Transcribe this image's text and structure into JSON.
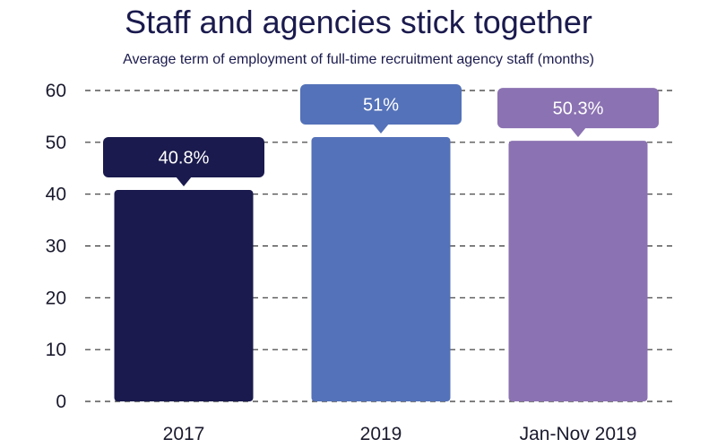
{
  "chart_data": {
    "type": "bar",
    "title": "Staff and agencies stick together",
    "subtitle": "Average term of employment of full-time recruitment agency staff (months)",
    "xlabel": "",
    "ylabel": "",
    "categories": [
      "2017",
      "2019",
      "Jan-Nov 2019"
    ],
    "values": [
      40.8,
      51,
      50.3
    ],
    "data_labels": [
      "40.8%",
      "51%",
      "50.3%"
    ],
    "colors": [
      "#1a1a4e",
      "#5472b9",
      "#8b72b2"
    ],
    "ylim": [
      0,
      60
    ],
    "yticks": [
      "0",
      "10",
      "20",
      "30",
      "40",
      "50",
      "60"
    ],
    "grid": "dashed horizontal",
    "legend": "none"
  }
}
